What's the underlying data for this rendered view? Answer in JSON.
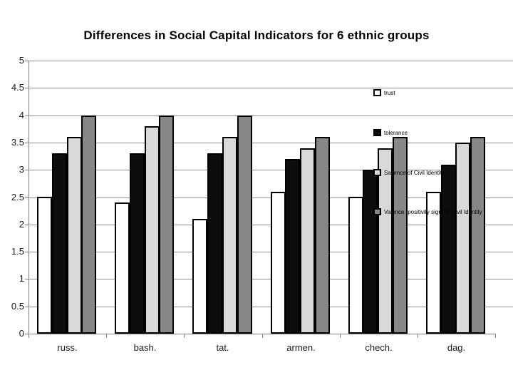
{
  "slide": {
    "background": "#ffffff"
  },
  "chart_data": {
    "type": "bar",
    "title": "Differences in Social Capital Indicators for 6 ethnic groups",
    "xlabel": "",
    "ylabel": "",
    "categories": [
      "russ.",
      "bash.",
      "tat.",
      "armen.",
      "chech.",
      "dag."
    ],
    "series": [
      {
        "name": "trust",
        "color": "#ffffff",
        "values": [
          2.5,
          2.4,
          2.1,
          2.6,
          2.5,
          2.6
        ]
      },
      {
        "name": "tolerance",
        "color": "#0d0d0d",
        "values": [
          3.3,
          3.3,
          3.3,
          3.2,
          3.0,
          3.1
        ]
      },
      {
        "name": "Salience of Civil Identity",
        "color": "#d9d9d9",
        "values": [
          3.6,
          3.8,
          3.6,
          3.4,
          3.4,
          3.5
        ]
      },
      {
        "name": "Valence (positivity sign) of Civil Identity",
        "color": "#878787",
        "values": [
          4.0,
          4.0,
          4.0,
          3.6,
          3.6,
          3.6
        ]
      }
    ],
    "ylim": [
      0,
      5
    ],
    "ytick_labels": [
      "0",
      "0.5",
      "1",
      "1.5",
      "2",
      "2.5",
      "3",
      "3.5",
      "4",
      "4.5",
      "5"
    ],
    "grid": true,
    "legend": {
      "position": "right-overlay",
      "entries": [
        "trust",
        "tolerance",
        "Salience of Civil Identity",
        "Valence (positivity sign) of Civil Identity"
      ]
    },
    "colors": {
      "gridline": "#8f8f8f",
      "axis": "#808080",
      "bar_outline": "#000000",
      "title_text": "#000000",
      "label_text": "#1a1a1a"
    }
  }
}
